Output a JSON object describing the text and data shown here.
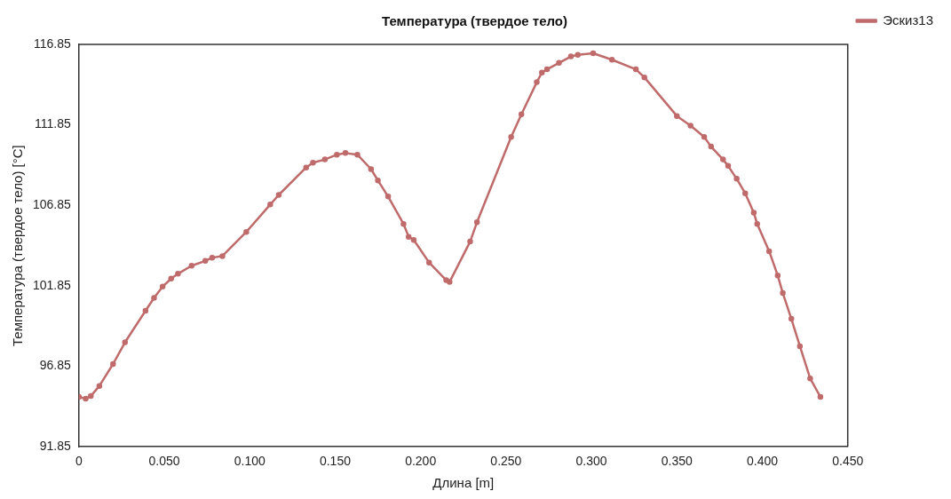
{
  "chart_data": {
    "type": "line",
    "title": "Температура (твердое тело)",
    "xlabel": "Длина [m]",
    "ylabel": "Температура (твердое тело) [°C]",
    "xlim": [
      0,
      0.45
    ],
    "ylim": [
      91.85,
      116.85
    ],
    "xticks": [
      0,
      {
        "value": 0.05,
        "label": "0.050"
      },
      {
        "value": 0.1,
        "label": "0.100"
      },
      {
        "value": 0.15,
        "label": "0.150"
      },
      {
        "value": 0.2,
        "label": "0.200"
      },
      {
        "value": 0.25,
        "label": "0.250"
      },
      {
        "value": 0.3,
        "label": "0.300"
      },
      {
        "value": 0.35,
        "label": "0.350"
      },
      {
        "value": 0.4,
        "label": "0.400"
      },
      {
        "value": 0.45,
        "label": "0.450"
      }
    ],
    "yticks": [
      91.85,
      96.85,
      101.85,
      106.85,
      111.85,
      116.85
    ],
    "grid": false,
    "legend": "top right",
    "marker": "circle",
    "line_style": "solid",
    "series": [
      {
        "name": "Эскиз13",
        "color": "#c06b6b",
        "x": [
          0,
          0.004,
          0.007,
          0.012,
          0.02,
          0.027,
          0.039,
          0.044,
          0.049,
          0.054,
          0.058,
          0.066,
          0.074,
          0.078,
          0.084,
          0.098,
          0.112,
          0.117,
          0.133,
          0.137,
          0.144,
          0.151,
          0.156,
          0.163,
          0.171,
          0.175,
          0.181,
          0.19,
          0.193,
          0.196,
          0.205,
          0.215,
          0.217,
          0.229,
          0.233,
          0.253,
          0.259,
          0.268,
          0.271,
          0.274,
          0.281,
          0.288,
          0.292,
          0.301,
          0.312,
          0.326,
          0.331,
          0.35,
          0.358,
          0.366,
          0.37,
          0.377,
          0.38,
          0.385,
          0.39,
          0.395,
          0.397,
          0.404,
          0.409,
          0.412,
          0.417,
          0.422,
          0.428,
          0.434
        ],
        "values": [
          94.95,
          94.84,
          95.0,
          95.63,
          96.99,
          98.34,
          100.3,
          101.1,
          101.8,
          102.3,
          102.6,
          103.1,
          103.4,
          103.6,
          103.7,
          105.2,
          106.9,
          107.5,
          109.2,
          109.5,
          109.7,
          110.0,
          110.1,
          110.0,
          109.1,
          108.4,
          107.4,
          105.7,
          104.9,
          104.7,
          103.3,
          102.2,
          102.1,
          104.6,
          105.8,
          111.1,
          112.5,
          114.5,
          115.1,
          115.3,
          115.7,
          116.1,
          116.2,
          116.3,
          115.9,
          115.3,
          114.8,
          112.4,
          111.8,
          111.1,
          110.5,
          109.7,
          109.3,
          108.5,
          107.6,
          106.4,
          105.7,
          104.0,
          102.5,
          101.4,
          99.8,
          98.1,
          96.1,
          94.95
        ]
      }
    ]
  }
}
